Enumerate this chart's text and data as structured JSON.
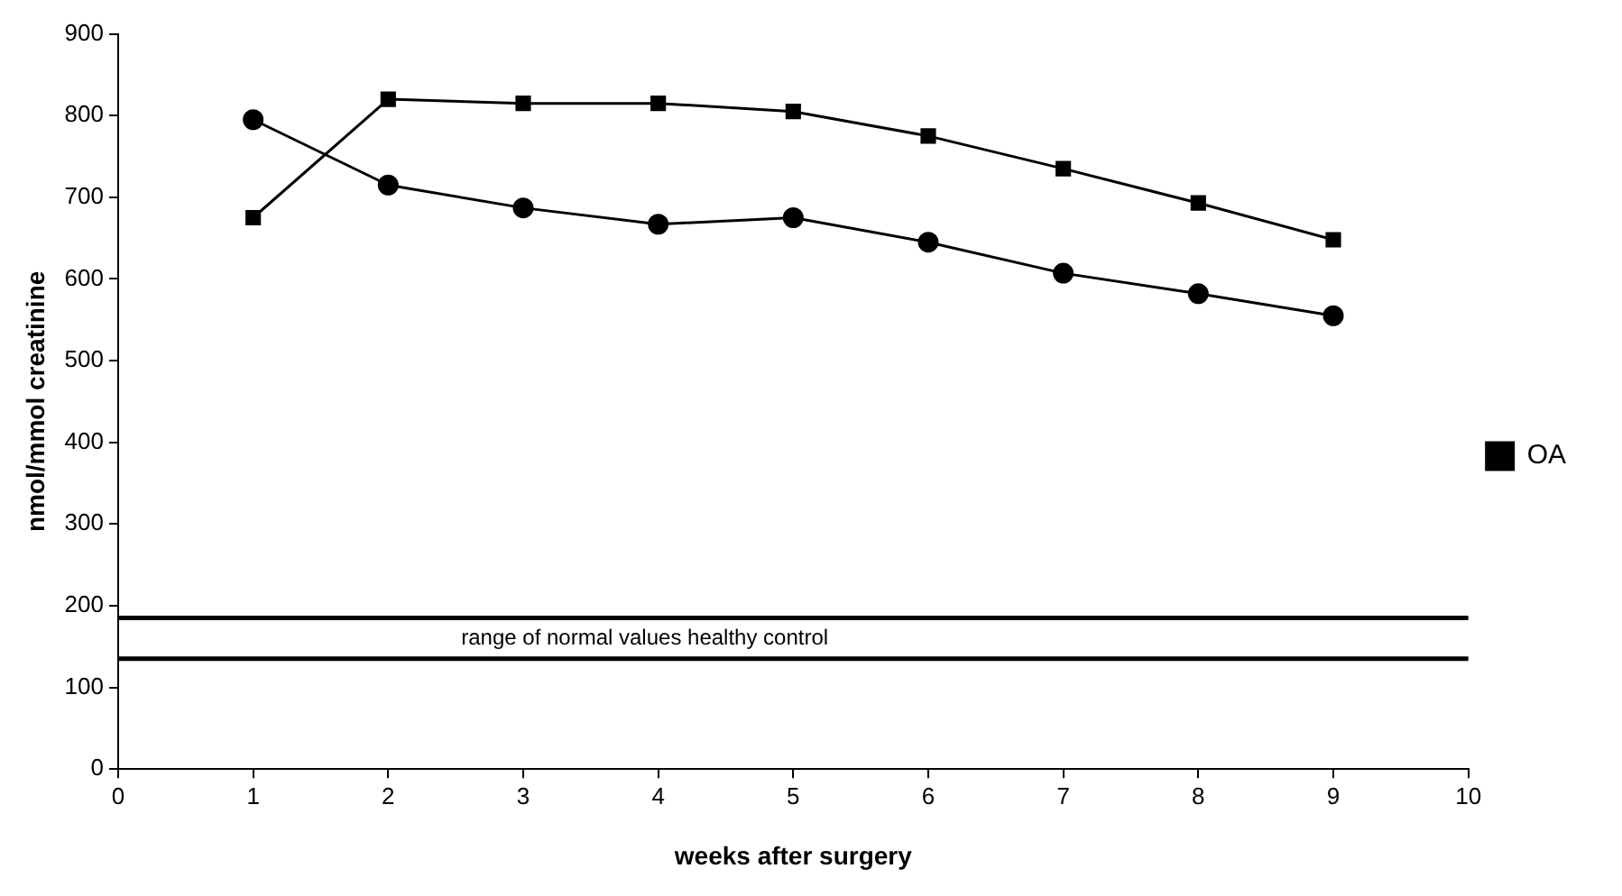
{
  "chart_data": {
    "type": "line",
    "xlabel": "weeks after surgery",
    "ylabel": "nmol/mmol creatinine",
    "x": [
      1,
      2,
      3,
      4,
      5,
      6,
      7,
      8,
      9
    ],
    "series": [
      {
        "name": "OA",
        "color": "#000000",
        "marker": "square",
        "values": [
          675,
          820,
          815,
          815,
          805,
          775,
          735,
          693,
          648
        ]
      },
      {
        "color": "#000000",
        "marker": "circle",
        "values": [
          795,
          715,
          687,
          667,
          675,
          645,
          607,
          582,
          555
        ]
      }
    ],
    "xlim": [
      0,
      10
    ],
    "xticks": [
      0,
      1,
      2,
      3,
      4,
      5,
      6,
      7,
      8,
      9,
      10
    ],
    "ylim": [
      0,
      900
    ],
    "yticks": [
      0,
      100,
      200,
      300,
      400,
      500,
      600,
      700,
      800,
      900
    ],
    "ref_lines": [
      {
        "axis": "y",
        "value": 185,
        "color": "#000000"
      },
      {
        "axis": "y",
        "value": 135,
        "color": "#000000"
      }
    ],
    "annotations": [
      "range of normal values healthy control"
    ],
    "grid": false,
    "legend": "right",
    "line_style": "solid"
  }
}
